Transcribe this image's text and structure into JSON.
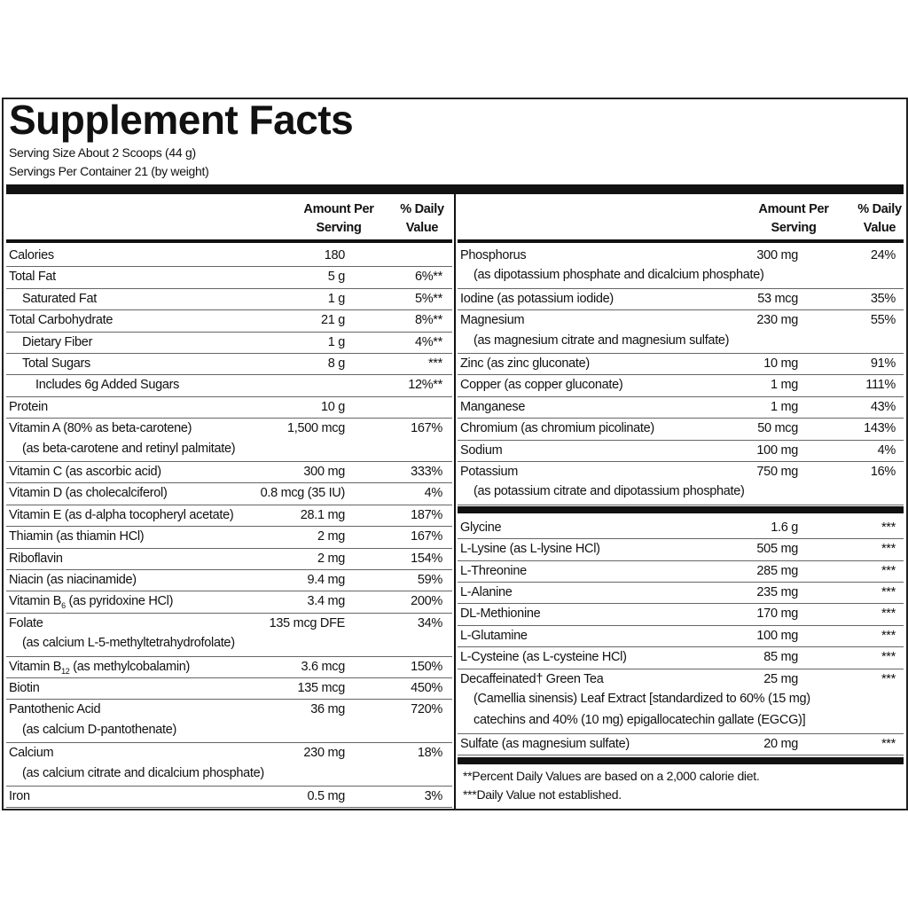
{
  "header": {
    "title": "Supplement Facts",
    "serving_size": "Serving Size About 2 Scoops (44 g)",
    "servings_per_container": "Servings Per Container 21 (by weight)"
  },
  "column_headers": {
    "amount": [
      "Amount Per",
      "Serving"
    ],
    "dv": [
      "% Daily",
      "Value"
    ]
  },
  "left": {
    "rows": [
      {
        "name": "Calories",
        "amount": "180"
      },
      {
        "name": "Total Fat",
        "amount": "5 g",
        "dv": "6%**"
      },
      {
        "name": "Saturated Fat",
        "indent": 1,
        "amount": "1 g",
        "dv": "5%**"
      },
      {
        "name": "Total Carbohydrate",
        "amount": "21 g",
        "dv": "8%**"
      },
      {
        "name": "Dietary Fiber",
        "indent": 1,
        "amount": "1 g",
        "dv": "4%**"
      },
      {
        "name": "Total Sugars",
        "indent": 1,
        "amount": "8 g",
        "dv": "***"
      },
      {
        "name": "Includes 6g Added Sugars",
        "indent": 2,
        "dv": "12%**"
      },
      {
        "name": "Protein",
        "amount": "10 g"
      },
      {
        "name": "Vitamin A (80% as beta-carotene)",
        "amount": "1,500 mcg",
        "dv": "167%",
        "detail": [
          "(as beta-carotene and retinyl palmitate)"
        ]
      },
      {
        "name": "Vitamin C (as ascorbic acid)",
        "amount": "300 mg",
        "dv": "333%"
      },
      {
        "name": "Vitamin D (as cholecalciferol)",
        "amount": "0.8 mcg (35 IU)",
        "dv": "4%"
      },
      {
        "name": "Vitamin E (as d-alpha tocopheryl acetate)",
        "amount": "28.1 mg",
        "dv": "187%"
      },
      {
        "name": "Thiamin (as thiamin HCl)",
        "amount": "2 mg",
        "dv": "167%"
      },
      {
        "name": "Riboflavin",
        "amount": "2 mg",
        "dv": "154%"
      },
      {
        "name": "Niacin (as niacinamide)",
        "amount": "9.4 mg",
        "dv": "59%"
      },
      {
        "name": "Vitamin B",
        "name_sub": "6",
        "name_after": " (as pyridoxine HCl)",
        "amount": "3.4 mg",
        "dv": "200%"
      },
      {
        "name": "Folate",
        "amount": "135 mcg DFE",
        "dv": "34%",
        "detail": [
          "(as calcium L-5-methyltetrahydrofolate)"
        ]
      },
      {
        "name": "Vitamin B",
        "name_sub": "12",
        "name_after": " (as methylcobalamin)",
        "amount": "3.6 mcg",
        "dv": "150%"
      },
      {
        "name": "Biotin",
        "amount": "135 mcg",
        "dv": "450%"
      },
      {
        "name": "Pantothenic Acid",
        "amount": "36 mg",
        "dv": "720%",
        "detail": [
          "(as calcium D-pantothenate)"
        ]
      },
      {
        "name": "Calcium",
        "amount": "230 mg",
        "dv": "18%",
        "detail": [
          "(as calcium citrate and dicalcium phosphate)"
        ]
      },
      {
        "name": "Iron",
        "amount": "0.5 mg",
        "dv": "3%"
      }
    ]
  },
  "right": {
    "groups": [
      [
        {
          "name": "Phosphorus",
          "amount": "300 mg",
          "dv": "24%",
          "detail": [
            "(as dipotassium phosphate and dicalcium phosphate)"
          ]
        },
        {
          "name": "Iodine (as potassium iodide)",
          "amount": "53 mcg",
          "dv": "35%"
        },
        {
          "name": "Magnesium",
          "amount": "230 mg",
          "dv": "55%",
          "detail": [
            "(as magnesium citrate and magnesium sulfate)"
          ]
        },
        {
          "name": "Zinc (as zinc gluconate)",
          "amount": "10 mg",
          "dv": "91%"
        },
        {
          "name": "Copper (as copper gluconate)",
          "amount": "1 mg",
          "dv": "111%"
        },
        {
          "name": "Manganese",
          "amount": "1 mg",
          "dv": "43%"
        },
        {
          "name": "Chromium (as chromium picolinate)",
          "amount": "50 mcg",
          "dv": "143%"
        },
        {
          "name": "Sodium",
          "amount": "100 mg",
          "dv": "4%"
        },
        {
          "name": "Potassium",
          "amount": "750 mg",
          "dv": "16%",
          "detail": [
            "(as potassium citrate and dipotassium phosphate)"
          ]
        }
      ],
      [
        {
          "name": "Glycine",
          "amount": "1.6 g",
          "dv": "***"
        },
        {
          "name": "L-Lysine (as L-lysine HCl)",
          "amount": "505 mg",
          "dv": "***"
        },
        {
          "name": "L-Threonine",
          "amount": "285 mg",
          "dv": "***"
        },
        {
          "name": "L-Alanine",
          "amount": "235 mg",
          "dv": "***"
        },
        {
          "name": "DL-Methionine",
          "amount": "170 mg",
          "dv": "***"
        },
        {
          "name": "L-Glutamine",
          "amount": "100 mg",
          "dv": "***"
        },
        {
          "name": "L-Cysteine (as L-cysteine HCl)",
          "amount": "85 mg",
          "dv": "***"
        },
        {
          "name": "Decaffeinated† Green Tea",
          "amount": "25 mg",
          "dv": "***",
          "detail": [
            "(Camellia sinensis) Leaf Extract [standardized to 60% (15 mg)",
            "catechins and 40% (10 mg) epigallocatechin gallate (EGCG)]"
          ]
        },
        {
          "name": "Sulfate (as magnesium sulfate)",
          "amount": "20 mg",
          "dv": "***"
        }
      ]
    ]
  },
  "footnotes": [
    "**Percent Daily Values are based on a 2,000 calorie diet.",
    "***Daily Value not established."
  ]
}
